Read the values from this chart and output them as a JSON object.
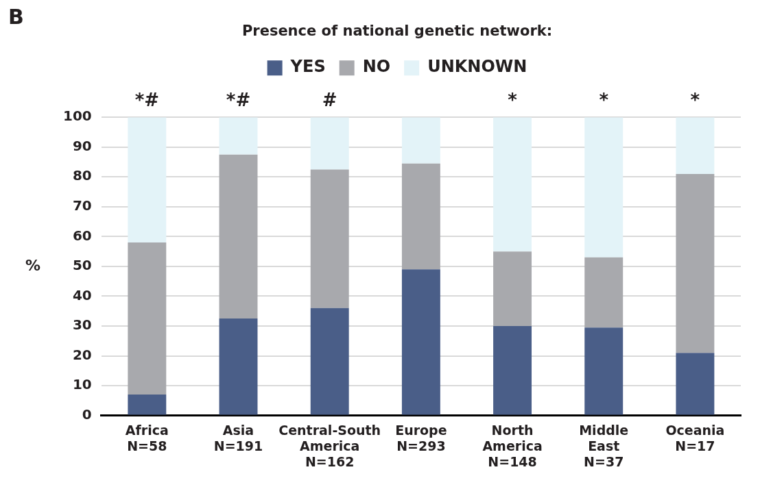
{
  "chart_data": {
    "type": "bar",
    "title": "Presence of national genetic network:",
    "ylabel": "%",
    "categories": [
      "Africa\nN=58",
      "Asia\nN=191",
      "Central-South\nAmerica\nN=162",
      "Europe\nN=293",
      "North\nAmerica\nN=148",
      "Middle\nEast\nN=37",
      "Oceania\nN=17"
    ],
    "series": [
      {
        "name": "YES",
        "color": "#4a5e88",
        "values": [
          7,
          32.5,
          36,
          49,
          30,
          29.5,
          21
        ]
      },
      {
        "name": "NO",
        "color": "#a8a9ad",
        "values": [
          51,
          55,
          46.5,
          35.5,
          25,
          23.5,
          60
        ]
      },
      {
        "name": "UNKNOWN",
        "color": "#e3f3f8",
        "values": [
          42,
          12.5,
          17.5,
          15.5,
          45,
          47,
          19
        ]
      }
    ],
    "stacked": true,
    "ylim": [
      0,
      100
    ],
    "yticks": [
      0,
      10,
      20,
      30,
      40,
      50,
      60,
      70,
      80,
      90,
      100
    ],
    "grid": "y",
    "legend": "top",
    "annotations": [
      "B",
      {
        "text": "*#",
        "x": "Africa\nN=58",
        "y": 100
      },
      {
        "text": "*#",
        "x": "Asia\nN=191",
        "y": 100
      },
      {
        "text": "#",
        "x": "Central-South\nAmerica\nN=162",
        "y": 100
      },
      {
        "text": "*",
        "x": "North\nAmerica\nN=148",
        "y": 100
      },
      {
        "text": "*",
        "x": "Middle\nEast\nN=37",
        "y": 100
      },
      {
        "text": "*",
        "x": "Oceania\nN=17",
        "y": 100
      }
    ]
  }
}
